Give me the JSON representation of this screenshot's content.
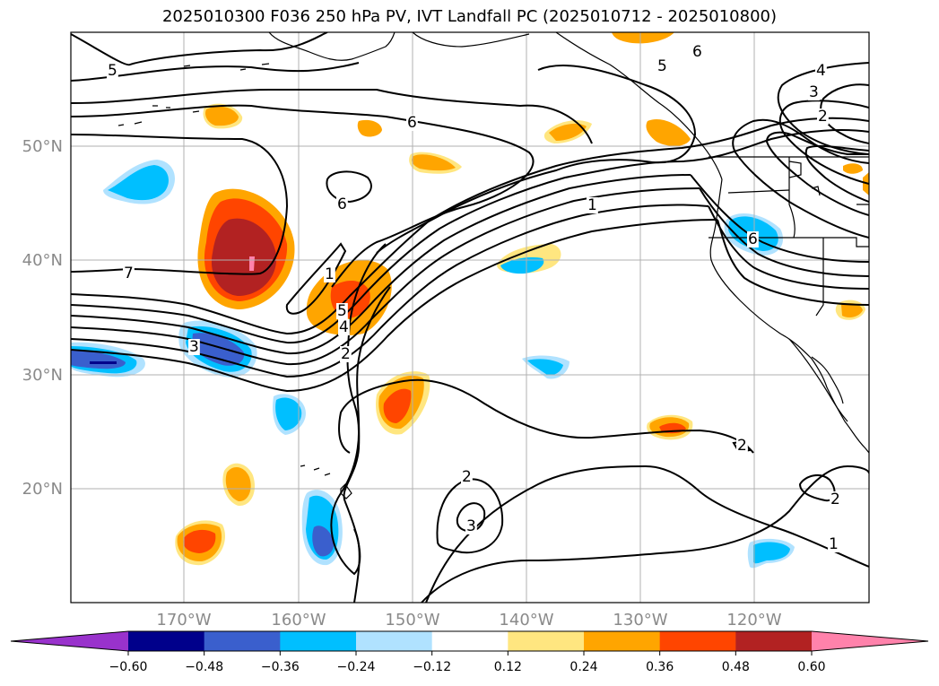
{
  "title": "2025010300 F036 250 hPa PV, IVT Landfall PC (2025010712 - 2025010800)",
  "lat_ticks": [
    "50°N",
    "40°N",
    "30°N",
    "20°N"
  ],
  "lon_ticks": [
    "170°W",
    "160°W",
    "150°W",
    "140°W",
    "130°W",
    "120°W"
  ],
  "colorbar": {
    "levels": [
      "−0.60",
      "−0.48",
      "−0.36",
      "−0.24",
      "−0.12",
      "0.12",
      "0.24",
      "0.36",
      "0.48",
      "0.60"
    ],
    "colors": [
      "#9932cc",
      "#00008b",
      "#3a5fcd",
      "#00bfff",
      "#b0e2ff",
      "#ffffff",
      "#ffe680",
      "#ffa500",
      "#ff4500",
      "#b22222",
      "#ff82ab"
    ]
  },
  "contour_labels": [
    "5",
    "6",
    "5",
    "4",
    "3",
    "2",
    "6",
    "6",
    "1",
    "1",
    "7",
    "5",
    "4",
    "2",
    "3",
    "2",
    "3",
    "1",
    "2",
    "2",
    "6"
  ],
  "colors": {
    "grid": "#b0b0b0",
    "contour": "#000000",
    "frame": "#000000"
  },
  "map": {
    "projection": "cylindrical",
    "lon_range": [
      "180°W",
      "110°W"
    ],
    "lat_range": [
      "10°N",
      "60°N"
    ]
  }
}
